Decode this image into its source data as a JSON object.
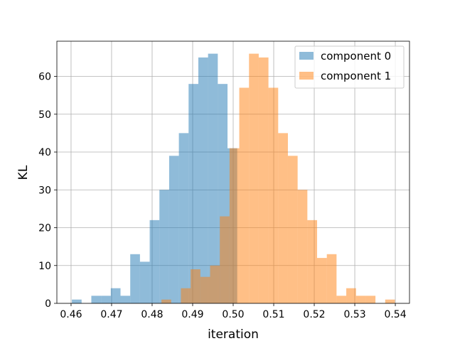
{
  "chart_data": {
    "type": "bar",
    "title": "",
    "xlabel": "iteration",
    "ylabel": "KL",
    "xlim": [
      0.4565,
      0.5435
    ],
    "ylim": [
      0,
      69.3
    ],
    "xticks": [
      0.46,
      0.47,
      0.48,
      0.49,
      0.5,
      0.51,
      0.52,
      0.53,
      0.54
    ],
    "xtick_labels": [
      "0.46",
      "0.47",
      "0.48",
      "0.49",
      "0.50",
      "0.51",
      "0.52",
      "0.53",
      "0.54"
    ],
    "yticks": [
      0,
      10,
      20,
      30,
      40,
      50,
      60
    ],
    "ytick_labels": [
      "0",
      "10",
      "20",
      "30",
      "40",
      "50",
      "60"
    ],
    "grid": true,
    "legend_position": "top-right",
    "series": [
      {
        "name": "component 0",
        "color": "#1f77b4",
        "bin_edges": [
          0.4602,
          0.4626,
          0.465,
          0.4674,
          0.4698,
          0.4722,
          0.4746,
          0.477,
          0.4794,
          0.4818,
          0.4842,
          0.4866,
          0.489,
          0.4914,
          0.4938,
          0.4962,
          0.4986,
          0.501
        ],
        "counts": [
          1,
          0,
          2,
          2,
          4,
          2,
          13,
          11,
          22,
          30,
          39,
          45,
          58,
          65,
          66,
          58,
          41
        ]
      },
      {
        "name": "component 1",
        "color": "#ff7f0e",
        "bin_edges": [
          0.4823,
          0.4847,
          0.4871,
          0.4895,
          0.4919,
          0.4943,
          0.4967,
          0.4991,
          0.5015,
          0.5039,
          0.5063,
          0.5087,
          0.5111,
          0.5135,
          0.5159,
          0.5183,
          0.5207,
          0.5231,
          0.5255,
          0.5279,
          0.5303,
          0.5327,
          0.5351,
          0.5375,
          0.5399
        ],
        "counts": [
          1,
          0,
          4,
          9,
          7,
          10,
          23,
          41,
          57,
          66,
          65,
          57,
          45,
          39,
          30,
          22,
          12,
          13,
          2,
          4,
          2,
          2,
          0,
          1
        ]
      }
    ]
  },
  "legend": {
    "items": [
      {
        "label": "component 0",
        "color": "#1f77b4"
      },
      {
        "label": "component 1",
        "color": "#ff7f0e"
      }
    ]
  }
}
